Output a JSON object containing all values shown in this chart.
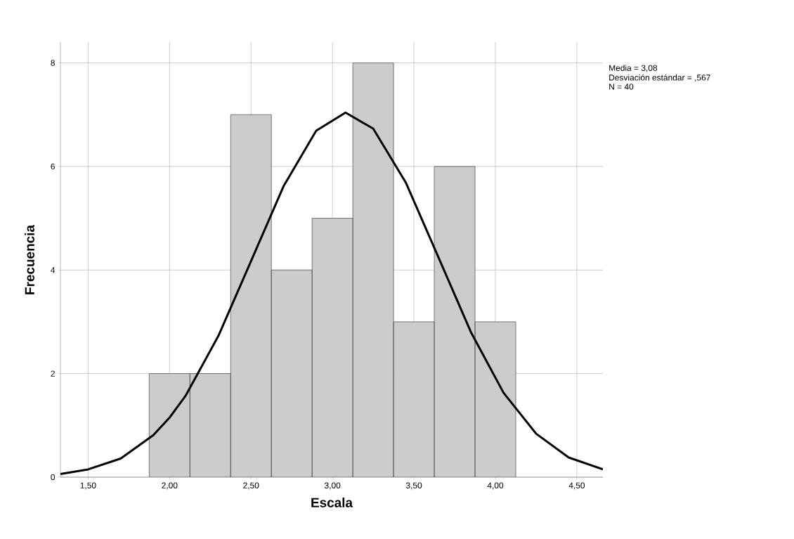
{
  "chart_data": {
    "type": "histogram",
    "xlabel": "Escala",
    "ylabel": "Frecuencia",
    "annotations": [
      "Media = 3,08",
      "Desviación estándar = ,567",
      "N = 40"
    ],
    "bins": [
      1.875,
      2.125,
      2.375,
      2.625,
      2.875,
      3.125,
      3.375,
      3.625,
      3.875,
      4.125
    ],
    "values": [
      2,
      2,
      7,
      4,
      5,
      8,
      3,
      6,
      3
    ],
    "color": "#cccccc",
    "series": [
      {
        "type": "line",
        "color": "#000000",
        "x": [
          1.33,
          1.5,
          1.7,
          1.9,
          2.0,
          2.1,
          2.3,
          2.5,
          2.7,
          2.9,
          3.08,
          3.25,
          3.45,
          3.65,
          3.85,
          4.05,
          4.25,
          4.45,
          4.66
        ],
        "values": [
          0.06,
          0.15,
          0.36,
          0.81,
          1.15,
          1.58,
          2.73,
          4.17,
          5.62,
          6.69,
          7.04,
          6.73,
          5.69,
          4.25,
          2.8,
          1.63,
          0.84,
          0.38,
          0.15
        ]
      }
    ],
    "xlim": [
      1.33,
      4.66
    ],
    "ylim": [
      0,
      8.4
    ],
    "xticks": [
      {
        "value": 1.5,
        "label": "1,50"
      },
      {
        "value": 2.0,
        "label": "2,00"
      },
      {
        "value": 2.5,
        "label": "2,50"
      },
      {
        "value": 3.0,
        "label": "3,00"
      },
      {
        "value": 3.5,
        "label": "3,50"
      },
      {
        "value": 4.0,
        "label": "4,00"
      },
      {
        "value": 4.5,
        "label": "4,50"
      }
    ],
    "yticks": [
      0,
      2,
      4,
      6,
      8
    ],
    "grid": true
  }
}
